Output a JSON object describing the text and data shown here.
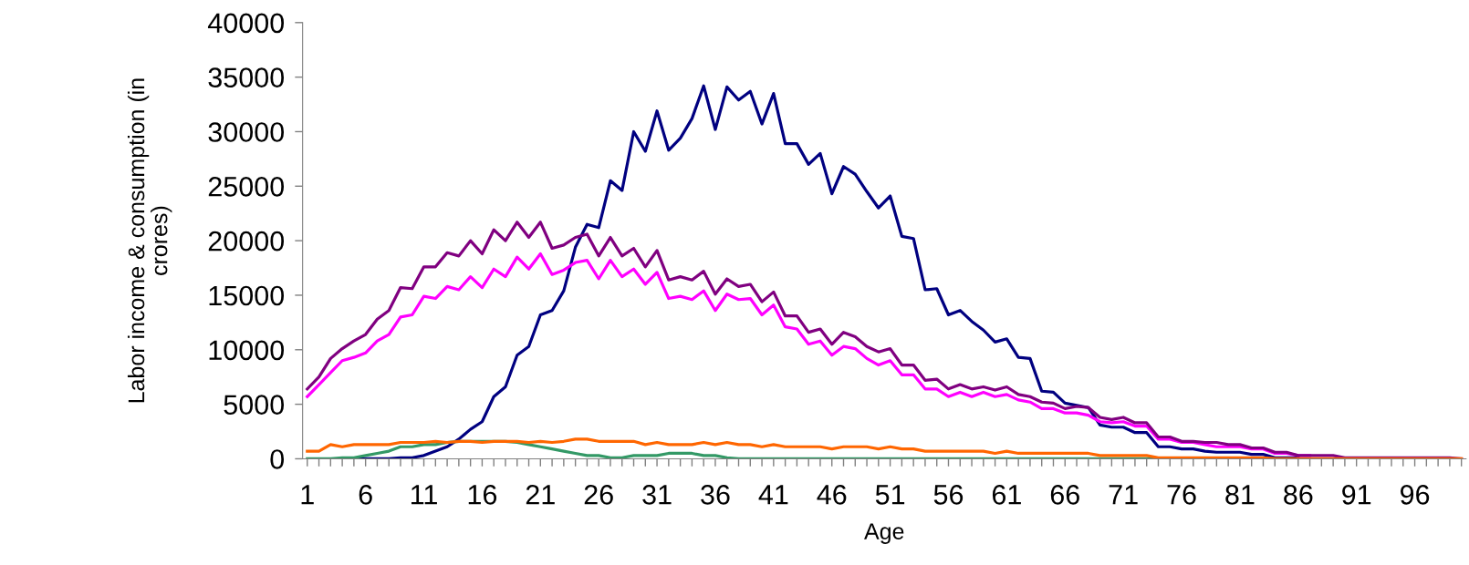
{
  "chart_data": {
    "type": "line",
    "xlabel": "Age",
    "ylabel": "Labor income & consumption (in\ncrores)",
    "categories": [
      "1",
      null,
      null,
      null,
      null,
      "6",
      null,
      null,
      null,
      null,
      "11",
      null,
      null,
      null,
      null,
      "16",
      null,
      null,
      null,
      null,
      "21",
      null,
      null,
      null,
      null,
      "26",
      null,
      null,
      null,
      null,
      "31",
      null,
      null,
      null,
      null,
      "36",
      null,
      null,
      null,
      null,
      "41",
      null,
      null,
      null,
      null,
      "46",
      null,
      null,
      null,
      null,
      "51",
      null,
      null,
      null,
      null,
      "56",
      null,
      null,
      null,
      null,
      "61",
      null,
      null,
      null,
      null,
      "66",
      null,
      null,
      null,
      null,
      "71",
      null,
      null,
      null,
      null,
      "76",
      null,
      null,
      null,
      null,
      "81",
      null,
      null,
      null,
      null,
      "86",
      null,
      null,
      null,
      null,
      "91",
      null,
      null,
      null,
      null,
      "96",
      null,
      null,
      null,
      null
    ],
    "ylim": [
      0,
      40000
    ],
    "yticks": [
      0,
      5000,
      10000,
      15000,
      20000,
      25000,
      30000,
      35000,
      40000
    ],
    "grid": false,
    "marker": "none",
    "line_style": "solid",
    "series": [
      {
        "color": "#000080",
        "values": [
          null,
          null,
          null,
          0,
          0,
          0,
          0,
          0,
          100,
          100,
          300,
          700,
          1100,
          1800,
          2700,
          3400,
          5700,
          6600,
          9500,
          10300,
          13200,
          13600,
          15400,
          19400,
          21500,
          21200,
          25500,
          24600,
          30000,
          28200,
          31900,
          28300,
          29400,
          31200,
          34200,
          30200,
          34100,
          32900,
          33700,
          30700,
          33500,
          28900,
          28900,
          27000,
          28000,
          24300,
          26800,
          26100,
          24500,
          23000,
          24100,
          20400,
          20200,
          15500,
          15600,
          13200,
          13600,
          12600,
          11800,
          10700,
          11000,
          9300,
          9200,
          6200,
          6100,
          5100,
          4900,
          4700,
          3100,
          2900,
          2900,
          2400,
          2400,
          1100,
          1100,
          900,
          900,
          700,
          600,
          600,
          600,
          400,
          400,
          100,
          100,
          100,
          null,
          null,
          null,
          null,
          null,
          null,
          null,
          null,
          null,
          null,
          null,
          null,
          null,
          null
        ]
      },
      {
        "color": "#ff00ff",
        "values": [
          5700,
          6800,
          7900,
          9000,
          9300,
          9700,
          10800,
          11400,
          13000,
          13200,
          14900,
          14700,
          15800,
          15500,
          16700,
          15700,
          17400,
          16700,
          18500,
          17400,
          18800,
          16900,
          17300,
          18000,
          18200,
          16500,
          18200,
          16700,
          17400,
          16000,
          17100,
          14700,
          14900,
          14600,
          15400,
          13600,
          15100,
          14600,
          14700,
          13200,
          14100,
          12100,
          11900,
          10500,
          10800,
          9500,
          10300,
          10100,
          9200,
          8600,
          9000,
          7700,
          7700,
          6400,
          6400,
          5700,
          6100,
          5700,
          6100,
          5700,
          5900,
          5400,
          5200,
          4600,
          4600,
          4200,
          4200,
          4000,
          3400,
          3300,
          3400,
          3000,
          3000,
          1800,
          1800,
          1500,
          1500,
          1300,
          1100,
          1100,
          1100,
          900,
          900,
          500,
          500,
          300,
          300,
          null,
          null,
          null,
          null,
          null,
          null,
          null,
          null,
          null,
          null,
          null,
          null,
          null
        ]
      },
      {
        "color": "#800080",
        "values": [
          6400,
          7500,
          9200,
          10100,
          10800,
          11400,
          12800,
          13600,
          15700,
          15600,
          17600,
          17600,
          18900,
          18600,
          20000,
          18800,
          21000,
          20000,
          21700,
          20300,
          21700,
          19300,
          19600,
          20300,
          20600,
          18600,
          20300,
          18600,
          19300,
          17600,
          19100,
          16400,
          16700,
          16400,
          17200,
          15100,
          16500,
          15800,
          16000,
          14400,
          15300,
          13100,
          13100,
          11600,
          11900,
          10500,
          11600,
          11200,
          10300,
          9800,
          10100,
          8600,
          8600,
          7200,
          7300,
          6400,
          6800,
          6400,
          6600,
          6300,
          6600,
          5900,
          5700,
          5200,
          5100,
          4600,
          4800,
          4700,
          3800,
          3600,
          3800,
          3300,
          3300,
          2000,
          2000,
          1600,
          1600,
          1500,
          1500,
          1300,
          1300,
          1000,
          1000,
          600,
          600,
          300,
          300,
          300,
          300,
          100,
          100,
          100,
          100,
          100,
          100,
          100,
          100,
          100,
          100,
          0
        ]
      },
      {
        "color": "#339966",
        "values": [
          0,
          0,
          0,
          100,
          100,
          300,
          500,
          700,
          1100,
          1100,
          1300,
          1300,
          1500,
          1600,
          1600,
          1600,
          1600,
          1600,
          1500,
          1300,
          1100,
          900,
          700,
          500,
          300,
          300,
          100,
          100,
          300,
          300,
          300,
          500,
          500,
          500,
          300,
          300,
          100,
          0,
          0,
          0,
          0,
          0,
          0,
          0,
          0,
          0,
          0,
          0,
          0,
          0,
          0,
          0,
          0,
          0,
          0,
          0,
          0,
          0,
          0,
          0,
          0,
          0,
          0,
          0,
          0,
          0,
          0,
          0,
          0,
          0,
          0,
          0,
          0,
          0,
          null,
          null,
          null,
          null,
          null,
          null,
          null,
          null,
          null,
          null,
          null,
          null,
          null,
          null,
          null,
          null,
          null,
          null,
          null,
          null,
          null,
          null,
          null,
          null,
          null,
          null
        ]
      },
      {
        "color": "#ff6600",
        "values": [
          700,
          700,
          1300,
          1100,
          1300,
          1300,
          1300,
          1300,
          1500,
          1500,
          1500,
          1600,
          1500,
          1600,
          1600,
          1500,
          1600,
          1600,
          1600,
          1500,
          1600,
          1500,
          1600,
          1800,
          1800,
          1600,
          1600,
          1600,
          1600,
          1300,
          1500,
          1300,
          1300,
          1300,
          1500,
          1300,
          1500,
          1300,
          1300,
          1100,
          1300,
          1100,
          1100,
          1100,
          1100,
          900,
          1100,
          1100,
          1100,
          900,
          1100,
          900,
          900,
          700,
          700,
          700,
          700,
          700,
          700,
          500,
          700,
          500,
          500,
          500,
          500,
          500,
          500,
          500,
          300,
          300,
          300,
          300,
          300,
          100,
          100,
          100,
          100,
          100,
          100,
          100,
          100,
          100,
          100,
          0,
          0,
          0,
          0,
          0,
          0,
          0,
          0,
          0,
          0,
          0,
          0,
          0,
          0,
          0,
          0,
          0
        ]
      }
    ]
  }
}
